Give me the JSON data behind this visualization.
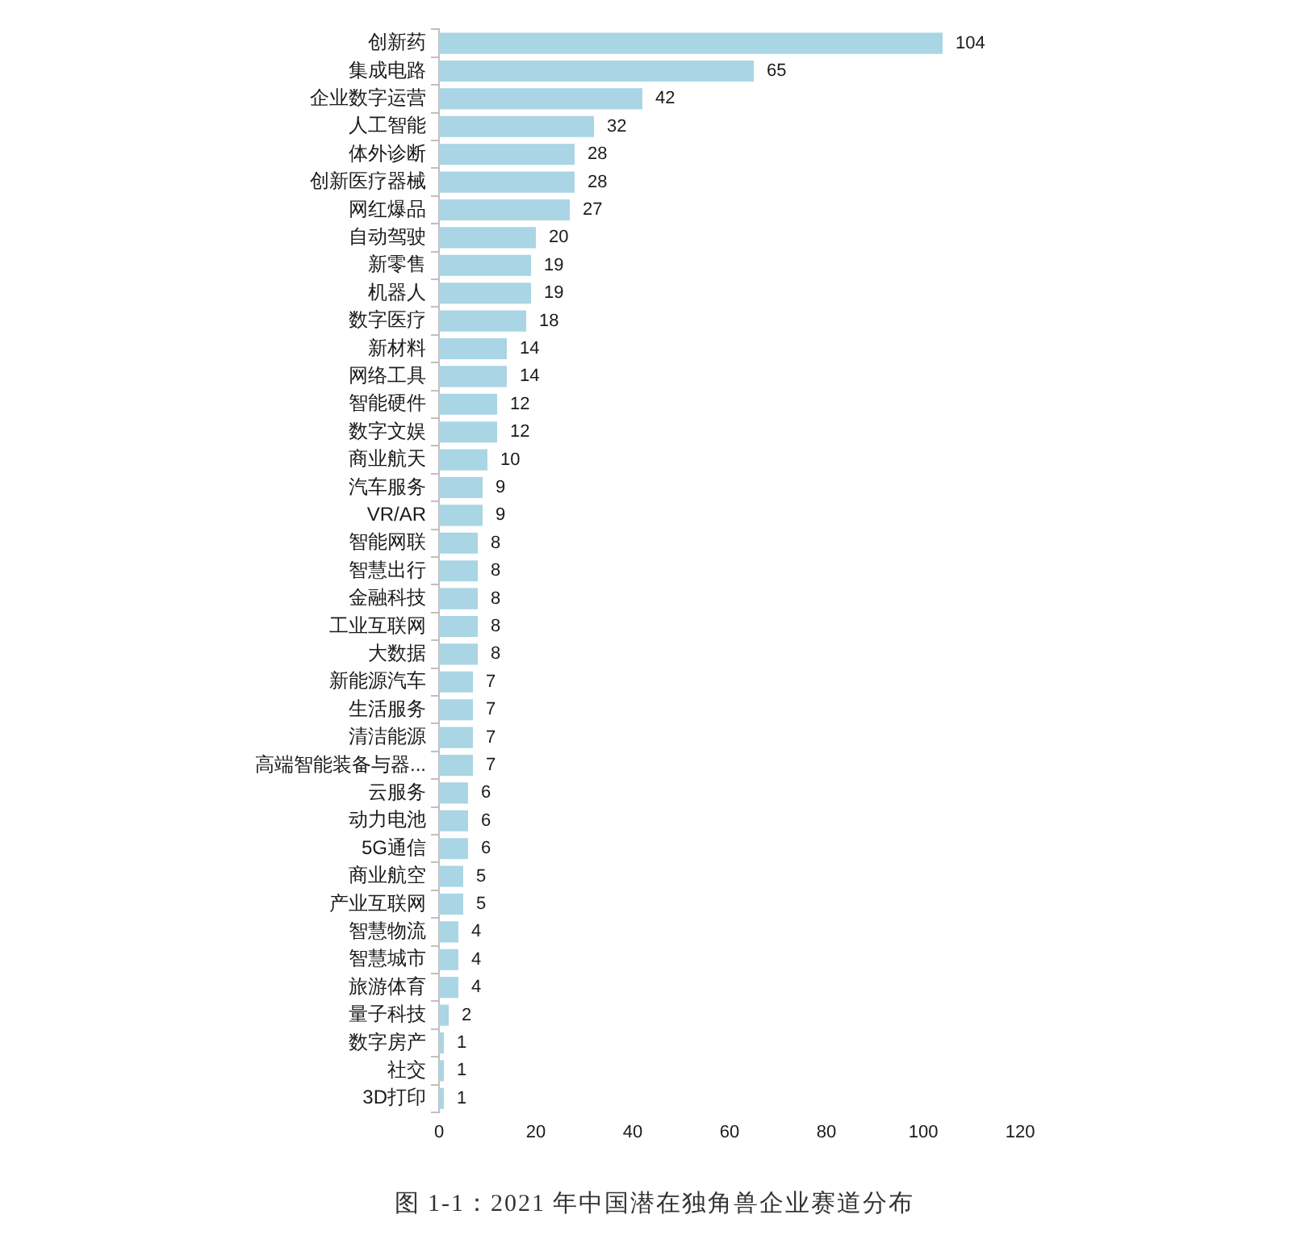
{
  "chart_data": {
    "type": "bar",
    "orientation": "horizontal",
    "categories": [
      "创新药",
      "集成电路",
      "企业数字运营",
      "人工智能",
      "体外诊断",
      "创新医疗器械",
      "网红爆品",
      "自动驾驶",
      "新零售",
      "机器人",
      "数字医疗",
      "新材料",
      "网络工具",
      "智能硬件",
      "数字文娱",
      "商业航天",
      "汽车服务",
      "VR/AR",
      "智能网联",
      "智慧出行",
      "金融科技",
      "工业互联网",
      "大数据",
      "新能源汽车",
      "生活服务",
      "清洁能源",
      "高端智能装备与器...",
      "云服务",
      "动力电池",
      "5G通信",
      "商业航空",
      "产业互联网",
      "智慧物流",
      "智慧城市",
      "旅游体育",
      "量子科技",
      "数字房产",
      "社交",
      "3D打印"
    ],
    "values": [
      104,
      65,
      42,
      32,
      28,
      28,
      27,
      20,
      19,
      19,
      18,
      14,
      14,
      12,
      12,
      10,
      9,
      9,
      8,
      8,
      8,
      8,
      8,
      7,
      7,
      7,
      7,
      6,
      6,
      6,
      5,
      5,
      4,
      4,
      4,
      2,
      1,
      1,
      1
    ],
    "color": "#a9d5e4",
    "xlim": [
      0,
      120
    ],
    "xticks": [
      0,
      20,
      40,
      60,
      80,
      100,
      120
    ],
    "data_labels": true,
    "annotations": [
      "图 1-1：2021 年中国潜在独角兽企业赛道分布"
    ]
  }
}
